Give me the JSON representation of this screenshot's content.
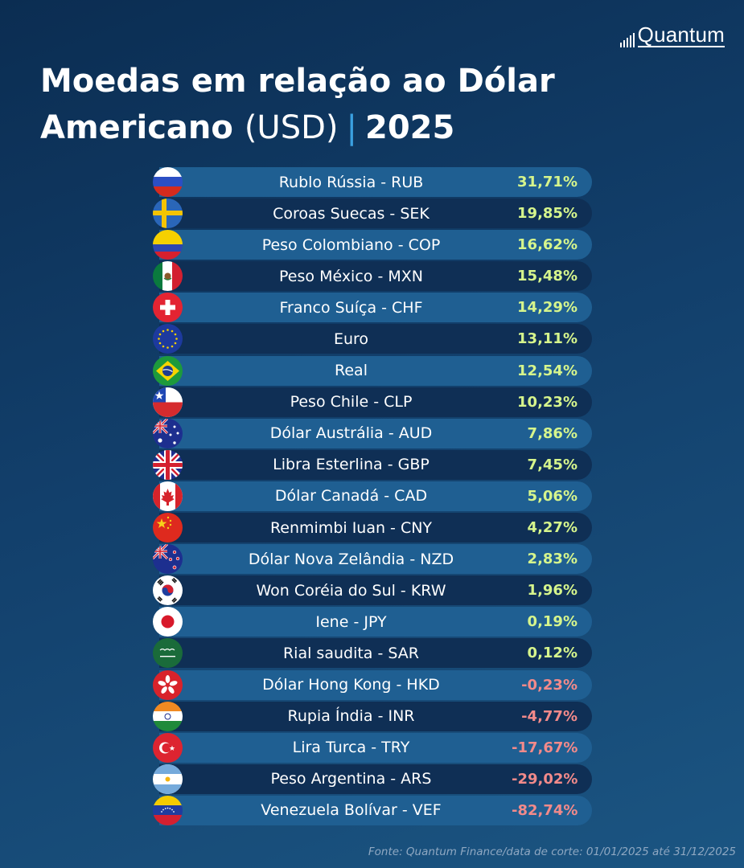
{
  "brand": {
    "name": "Quantum"
  },
  "title": {
    "line1": "Moedas em relação ao Dólar",
    "line2_bold": "Americano",
    "line2_light": "(USD)",
    "separator": "|",
    "year": "2025"
  },
  "source": "Fonte: Quantum Finance/data de corte: 01/01/2025 até 31/12/2025",
  "colors": {
    "positive": "#d6f58c",
    "negative": "#f28a8a",
    "row_light": "#1f5f92",
    "row_dark": "#0f2f55",
    "separator": "#3aa0e0"
  },
  "chart_data": {
    "type": "table",
    "title": "Moedas em relação ao Dólar Americano (USD) | 2025",
    "rows": [
      {
        "flag": "russia-flag-icon",
        "label": "Rublo Rússia - RUB",
        "value": 31.71,
        "display": "31,71%"
      },
      {
        "flag": "sweden-flag-icon",
        "label": "Coroas Suecas - SEK",
        "value": 19.85,
        "display": "19,85%"
      },
      {
        "flag": "colombia-flag-icon",
        "label": "Peso Colombiano - COP",
        "value": 16.62,
        "display": "16,62%"
      },
      {
        "flag": "mexico-flag-icon",
        "label": "Peso México - MXN",
        "value": 15.48,
        "display": "15,48%"
      },
      {
        "flag": "switzerland-flag-icon",
        "label": "Franco Suíça - CHF",
        "value": 14.29,
        "display": "14,29%"
      },
      {
        "flag": "eu-flag-icon",
        "label": "Euro",
        "value": 13.11,
        "display": "13,11%"
      },
      {
        "flag": "brazil-flag-icon",
        "label": "Real",
        "value": 12.54,
        "display": "12,54%"
      },
      {
        "flag": "chile-flag-icon",
        "label": "Peso Chile - CLP",
        "value": 10.23,
        "display": "10,23%"
      },
      {
        "flag": "australia-flag-icon",
        "label": "Dólar Austrália - AUD",
        "value": 7.86,
        "display": "7,86%"
      },
      {
        "flag": "uk-flag-icon",
        "label": "Libra Esterlina - GBP",
        "value": 7.45,
        "display": "7,45%"
      },
      {
        "flag": "canada-flag-icon",
        "label": "Dólar Canadá - CAD",
        "value": 5.06,
        "display": "5,06%"
      },
      {
        "flag": "china-flag-icon",
        "label": "Renmimbi Iuan - CNY",
        "value": 4.27,
        "display": "4,27%"
      },
      {
        "flag": "new-zealand-flag-icon",
        "label": "Dólar Nova Zelândia - NZD",
        "value": 2.83,
        "display": "2,83%"
      },
      {
        "flag": "south-korea-flag-icon",
        "label": "Won Coréia do Sul - KRW",
        "value": 1.96,
        "display": "1,96%"
      },
      {
        "flag": "japan-flag-icon",
        "label": "Iene - JPY",
        "value": 0.19,
        "display": "0,19%"
      },
      {
        "flag": "saudi-arabia-flag-icon",
        "label": "Rial saudita - SAR",
        "value": 0.12,
        "display": "0,12%"
      },
      {
        "flag": "hong-kong-flag-icon",
        "label": "Dólar Hong Kong - HKD",
        "value": -0.23,
        "display": "-0,23%"
      },
      {
        "flag": "india-flag-icon",
        "label": "Rupia Índia - INR",
        "value": -4.77,
        "display": "-4,77%"
      },
      {
        "flag": "turkey-flag-icon",
        "label": "Lira Turca - TRY",
        "value": -17.67,
        "display": "-17,67%"
      },
      {
        "flag": "argentina-flag-icon",
        "label": "Peso Argentina - ARS",
        "value": -29.02,
        "display": "-29,02%"
      },
      {
        "flag": "venezuela-flag-icon",
        "label": "Venezuela Bolívar - VEF",
        "value": -82.74,
        "display": "-82,74%"
      }
    ]
  }
}
